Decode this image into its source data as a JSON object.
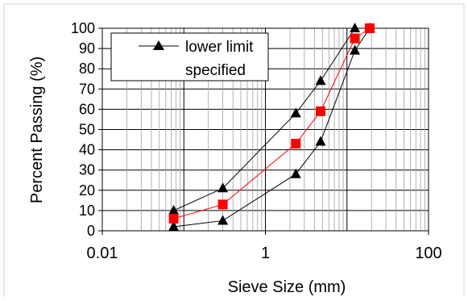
{
  "chart_data": {
    "type": "scatter",
    "title": "",
    "xlabel": "Sieve Size (mm)",
    "ylabel": "Percent Passing (%)",
    "x_scale": "log",
    "xlim": [
      0.01,
      100
    ],
    "ylim": [
      0,
      100
    ],
    "x_ticks": [
      0.01,
      1,
      100
    ],
    "x_tick_labels": [
      "0.01",
      "1",
      "100"
    ],
    "y_ticks": [
      0,
      10,
      20,
      30,
      40,
      50,
      60,
      70,
      80,
      90,
      100
    ],
    "grid": true,
    "legend_position": "top-left",
    "series": [
      {
        "name": "lower limit specified",
        "marker": "triangle",
        "color": "#000000",
        "points": [
          [
            0.075,
            10
          ],
          [
            0.3,
            21
          ],
          [
            2.36,
            58
          ],
          [
            4.75,
            74
          ],
          [
            12.5,
            100
          ],
          [
            19,
            100
          ]
        ]
      },
      {
        "name": "",
        "marker": "triangle",
        "color": "#000000",
        "points": [
          [
            0.075,
            2
          ],
          [
            0.3,
            5
          ],
          [
            2.36,
            28
          ],
          [
            4.75,
            44
          ],
          [
            12.5,
            89
          ],
          [
            19,
            100
          ]
        ]
      },
      {
        "name": "",
        "marker": "square",
        "color": "#ff0000",
        "points": [
          [
            0.075,
            6
          ],
          [
            0.3,
            13
          ],
          [
            2.36,
            43
          ],
          [
            4.75,
            59
          ],
          [
            12.5,
            95
          ],
          [
            19,
            100
          ]
        ]
      }
    ],
    "legend": {
      "line1": "lower limit",
      "line2": "specified"
    }
  }
}
